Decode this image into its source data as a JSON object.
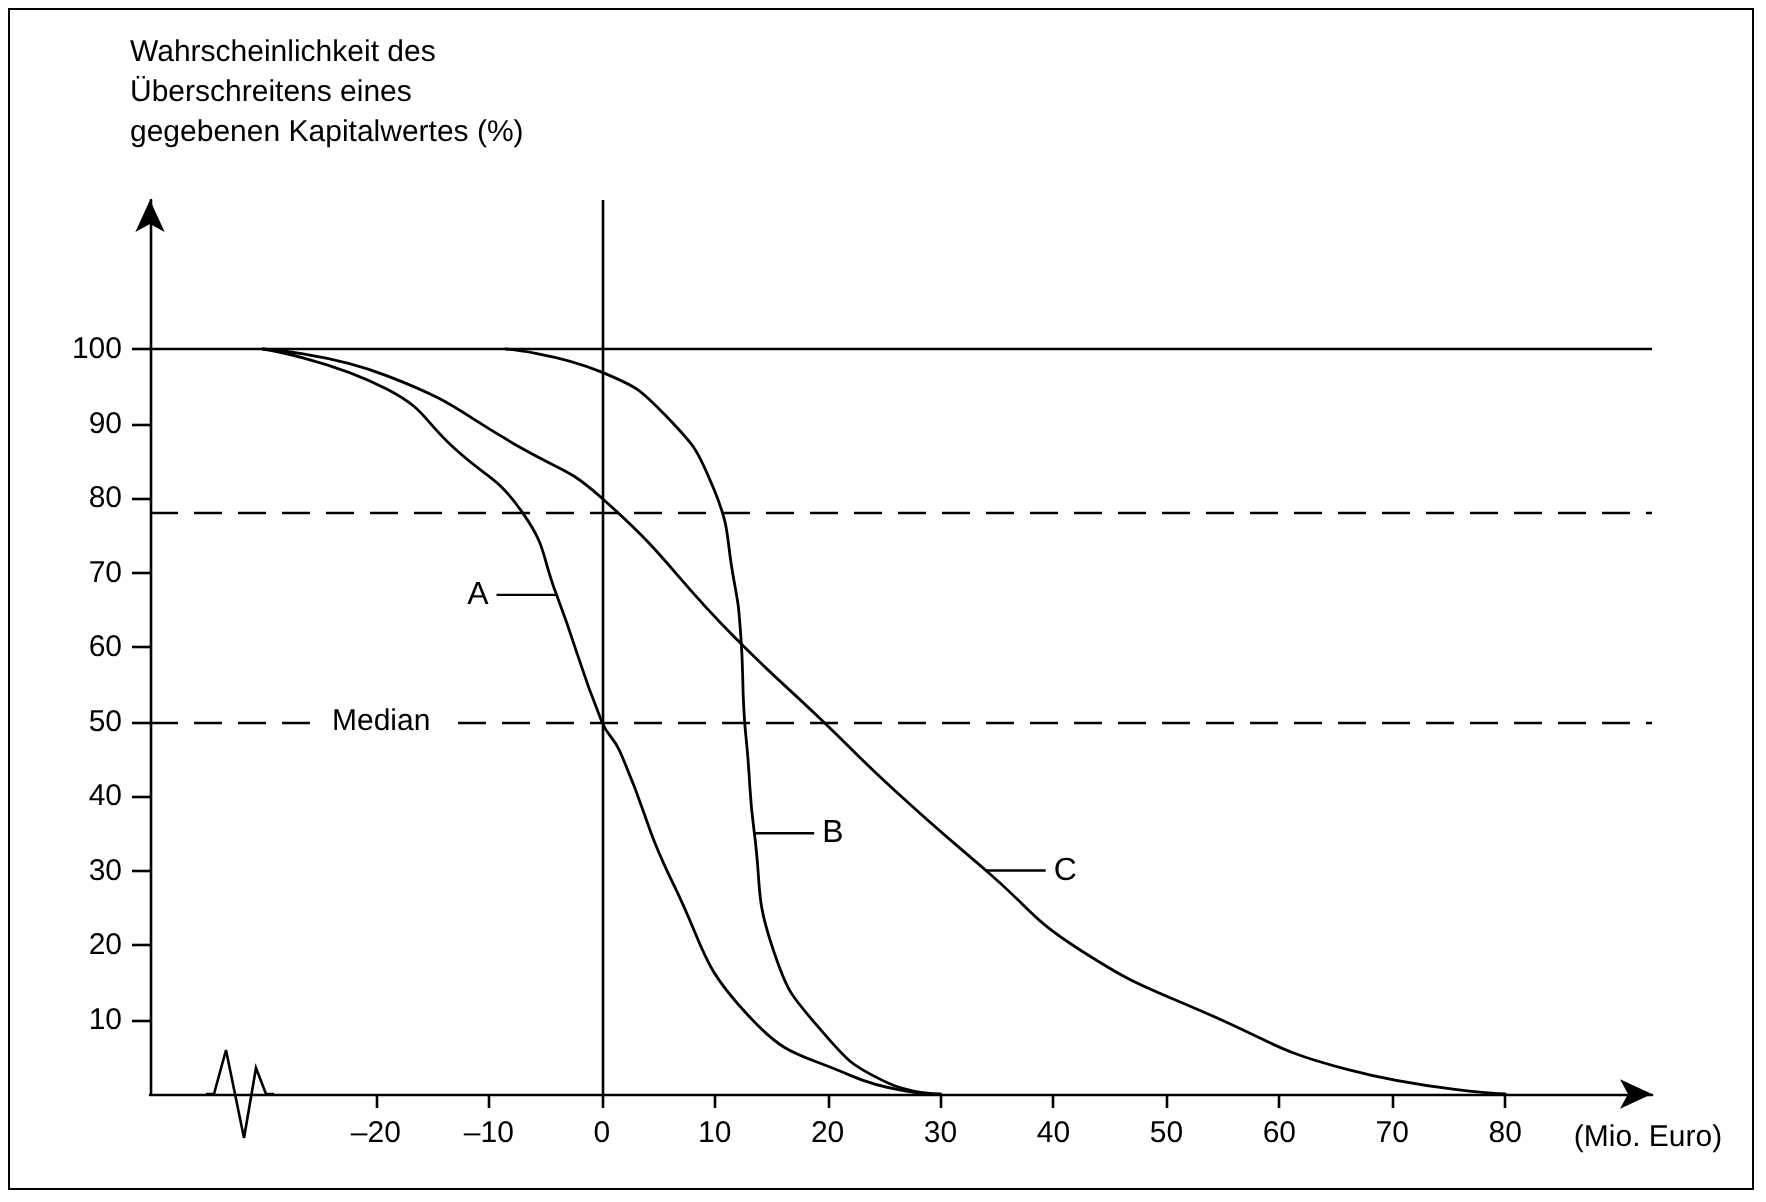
{
  "chart_data": {
    "type": "line",
    "ylabel": "Wahrscheinlichkeit des\nÜberschreitens eines\ngegebenen Kapitalwertes (%)",
    "xlabel": "(Mio. Euro)",
    "xlim": [
      -40,
      93
    ],
    "xticks": [
      {
        "value": -20,
        "label": "–20"
      },
      {
        "value": -10,
        "label": "–10"
      },
      0,
      10,
      20,
      30,
      40,
      50,
      60,
      70,
      80
    ],
    "ylim": [
      0,
      120
    ],
    "yticks": [
      10,
      20,
      30,
      40,
      50,
      60,
      70,
      80,
      90,
      100
    ],
    "grid": false,
    "marker": "none",
    "line_style": "solid",
    "series": [
      {
        "color": "#000000",
        "x": [
          -30,
          -19,
          -13,
          -7,
          -4,
          0,
          1.6,
          6.4,
          13,
          22,
          29
        ],
        "values": [
          100,
          94.6,
          86.6,
          78,
          67,
          50,
          46,
          28,
          10.5,
          2.5,
          0
        ]
      },
      {
        "color": "#000000",
        "x": [
          -8.5,
          0,
          5.7,
          9.9,
          11.7,
          12.3,
          12.6,
          12.9,
          13.5,
          15.2,
          19.4,
          25.3,
          30
        ],
        "values": [
          100,
          96.9,
          91,
          81.3,
          69,
          61.8,
          51.2,
          45.9,
          35.2,
          19.3,
          8.6,
          1.5,
          0
        ]
      },
      {
        "color": "#000000",
        "x": [
          -30,
          -19,
          -7,
          0,
          11.7,
          19.4,
          25.9,
          34.1,
          42.4,
          54.2,
          66,
          80
        ],
        "values": [
          100,
          96.4,
          86.6,
          80,
          61.4,
          50.3,
          40.8,
          29.9,
          19.3,
          10.4,
          3.3,
          0
        ]
      }
    ],
    "ref_lines": [
      {
        "axis": "y",
        "value": 100,
        "color": "#000000",
        "line_style": "solid"
      },
      {
        "axis": "x",
        "value": 0,
        "color": "#000000",
        "line_style": "solid"
      },
      {
        "axis": "y",
        "value": 78,
        "color": "#000000",
        "line_style": "dashed"
      },
      {
        "axis": "y",
        "value": 50,
        "label": "Median",
        "color": "#000000",
        "line_style": "dashed"
      }
    ],
    "annotations": [
      {
        "text": "A",
        "x": -4,
        "y": 67
      },
      {
        "text": "B",
        "x": 13.5,
        "y": 35
      },
      {
        "text": "C",
        "x": 34,
        "y": 30
      }
    ]
  }
}
